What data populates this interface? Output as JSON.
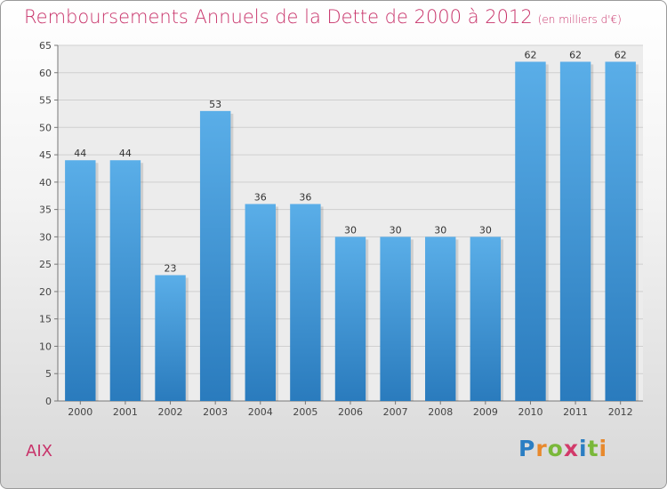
{
  "chart_data": {
    "type": "bar",
    "title": "Remboursements Annuels de la Dette de 2000 à 2012",
    "subtitle": "(en milliers d'€)",
    "categories": [
      "2000",
      "2001",
      "2002",
      "2003",
      "2004",
      "2005",
      "2006",
      "2007",
      "2008",
      "2009",
      "2010",
      "2011",
      "2012"
    ],
    "values": [
      44,
      44,
      23,
      53,
      36,
      36,
      30,
      30,
      30,
      30,
      62,
      62,
      62
    ],
    "ylim": [
      0,
      65
    ],
    "yticks": [
      0,
      5,
      10,
      15,
      20,
      25,
      30,
      35,
      40,
      45,
      50,
      55,
      60,
      65
    ],
    "xlabel": "",
    "ylabel": "",
    "grid": true,
    "bar_color_top": "#5aaee8",
    "bar_color_bottom": "#2a7bbd"
  },
  "footer": {
    "city": "AIX",
    "logo_letters": [
      {
        "ch": "P",
        "color": "#2b7ec3"
      },
      {
        "ch": "r",
        "color": "#e8892d"
      },
      {
        "ch": "o",
        "color": "#7ab83a"
      },
      {
        "ch": "x",
        "color": "#d23a6a"
      },
      {
        "ch": "i",
        "color": "#2b7ec3"
      },
      {
        "ch": "t",
        "color": "#7ab83a"
      },
      {
        "ch": "i",
        "color": "#e8892d"
      }
    ]
  }
}
